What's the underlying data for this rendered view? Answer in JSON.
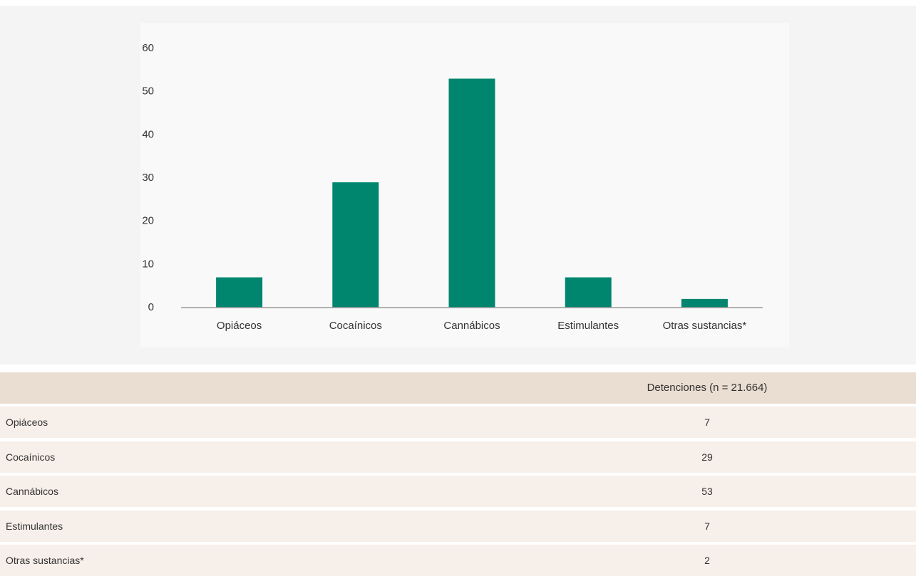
{
  "chart_data": {
    "type": "bar",
    "categories": [
      "Opiáceos",
      "Cocaínicos",
      "Cannábicos",
      "Estimulantes",
      "Otras sustancias*"
    ],
    "values": [
      7,
      29,
      53,
      7,
      2
    ],
    "color": "#00866f",
    "ylim": [
      0,
      60
    ],
    "yticks": [
      0,
      10,
      20,
      30,
      40,
      50,
      60
    ],
    "grid": false
  },
  "table": {
    "header": "Detenciones (n = 21.664)"
  }
}
